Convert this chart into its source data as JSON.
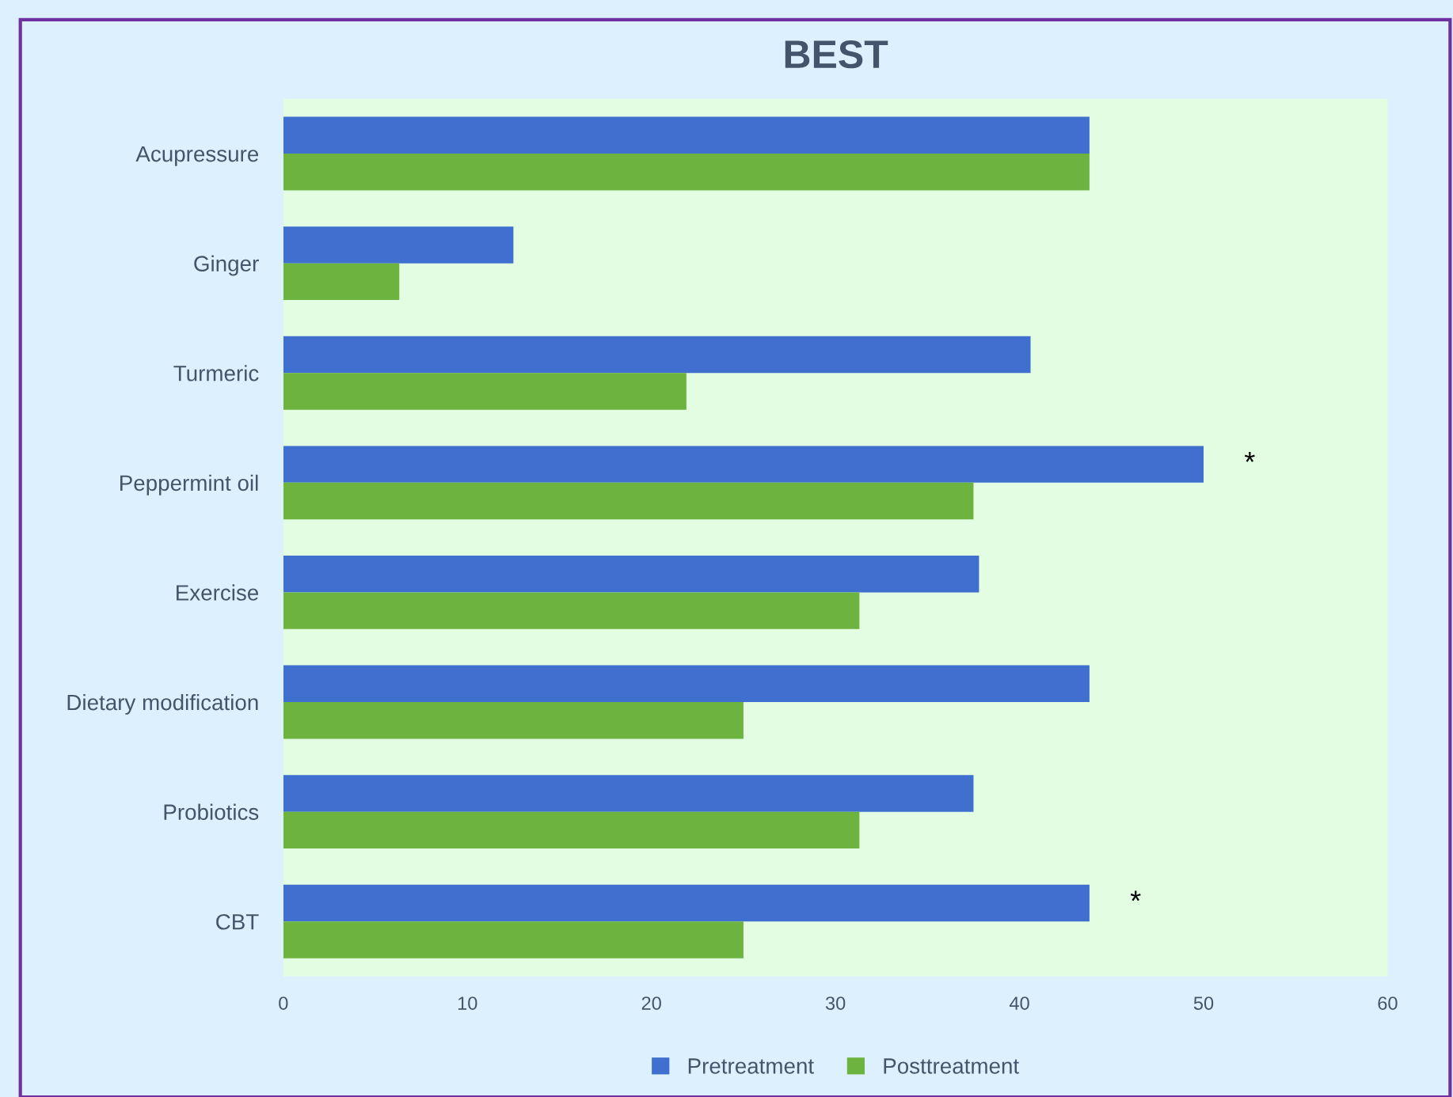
{
  "chart_data": {
    "type": "bar",
    "orientation": "horizontal",
    "title": "BEST",
    "categories": [
      "Acupressure",
      "Ginger",
      "Turmeric",
      "Peppermint oil",
      "Exercise",
      "Dietary modification",
      "Probiotics",
      "CBT"
    ],
    "series": [
      {
        "name": "Pretreatment",
        "color": "#3f6fcf",
        "values": [
          43.8,
          12.5,
          40.6,
          50.0,
          37.8,
          43.8,
          37.5,
          43.8
        ]
      },
      {
        "name": "Posttreatment",
        "color": "#6db33f",
        "values": [
          43.8,
          6.3,
          21.9,
          37.5,
          31.3,
          25.0,
          31.3,
          25.0
        ]
      }
    ],
    "xlim": [
      0,
      60
    ],
    "xticks": [
      0,
      10,
      20,
      30,
      40,
      50,
      60
    ],
    "grid": false,
    "legend": "bottom",
    "annotations": [
      {
        "text": "*",
        "x": 50.0,
        "y": "Peppermint oil"
      },
      {
        "text": "*",
        "x": 43.8,
        "y": "CBT"
      }
    ]
  }
}
